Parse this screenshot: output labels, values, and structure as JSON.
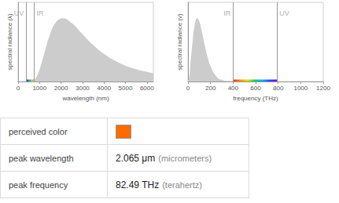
{
  "chart_data": [
    {
      "type": "area",
      "xlabel": "wavelength (nm)",
      "ylabel": "spectral radiance (λ)",
      "x": [
        0,
        300,
        500,
        600,
        700,
        800,
        900,
        1000,
        1200,
        1500,
        1750,
        2000,
        2065,
        2500,
        3000,
        3500,
        4000,
        4500,
        5000,
        5500,
        6000,
        6300
      ],
      "values": [
        0,
        0,
        0,
        0.003,
        0.014,
        0.044,
        0.102,
        0.188,
        0.418,
        0.757,
        0.931,
        0.996,
        1.0,
        0.921,
        0.746,
        0.574,
        0.436,
        0.33,
        0.252,
        0.195,
        0.152,
        0.132
      ],
      "color": "#cccccc",
      "xlim": [
        0,
        6300
      ],
      "xticks": [
        0,
        1000,
        2000,
        3000,
        4000,
        5000,
        6000
      ],
      "ylim": [
        0,
        1.25
      ],
      "yticks": [],
      "tick_labels": "x",
      "grid": false,
      "vlines": [
        380,
        750
      ],
      "annotations": [
        {
          "x": 380,
          "text": "UV"
        },
        {
          "x": 750,
          "text": "IR"
        }
      ]
    },
    {
      "type": "area",
      "xlabel": "frequency (THz)",
      "ylabel": "spectral radiance (ν)",
      "x": [
        0,
        10,
        20,
        40,
        60,
        82.5,
        100,
        120,
        150,
        175,
        200,
        250,
        300,
        400,
        500,
        1200
      ],
      "values": [
        0,
        0.069,
        0.229,
        0.615,
        0.896,
        1.0,
        0.951,
        0.815,
        0.565,
        0.38,
        0.241,
        0.085,
        0.027,
        0.002,
        0,
        0
      ],
      "color": "#cccccc",
      "xlim": [
        0,
        1200
      ],
      "xticks": [
        0,
        200,
        400,
        600,
        800,
        1000,
        1200
      ],
      "ylim": [
        0,
        1.25
      ],
      "yticks": [],
      "tick_labels": "x",
      "grid": false,
      "vlines": [
        400,
        790
      ],
      "annotations": [
        {
          "x": 400,
          "text": "IR"
        },
        {
          "x": 790,
          "text": "UV"
        }
      ]
    }
  ],
  "table": {
    "rows": [
      {
        "label": "perceived color",
        "color": "#ff6a00"
      },
      {
        "label": "peak wavelength",
        "value": "2.065 μm",
        "unit": "(micrometers)"
      },
      {
        "label": "peak frequency",
        "value": "82.49 THz",
        "unit": "(terahertz)"
      }
    ]
  }
}
